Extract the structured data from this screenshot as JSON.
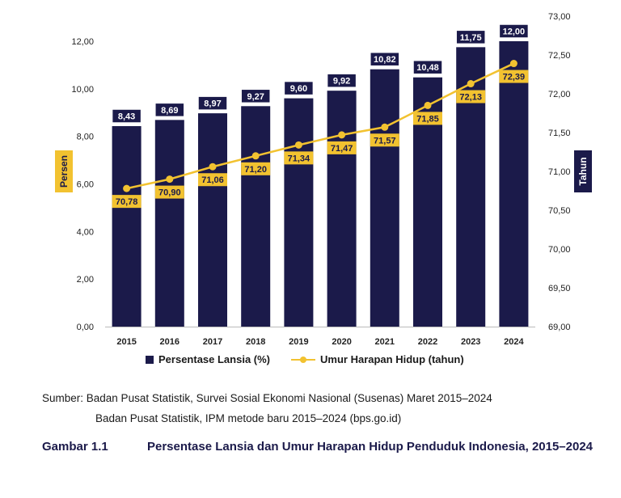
{
  "chart_data": {
    "type": "bar+line",
    "categories": [
      "2015",
      "2016",
      "2017",
      "2018",
      "2019",
      "2020",
      "2021",
      "2022",
      "2023",
      "2024"
    ],
    "series": [
      {
        "name": "Persentase Lansia (%)",
        "type": "bar",
        "axis": "left",
        "color": "#1b1a4a",
        "values": [
          8.43,
          8.69,
          8.97,
          9.27,
          9.6,
          9.92,
          10.82,
          10.48,
          11.75,
          12.0
        ],
        "labels": [
          "8,43",
          "8,69",
          "8,97",
          "9,27",
          "9,60",
          "9,92",
          "10,82",
          "10,48",
          "11,75",
          "12,00"
        ]
      },
      {
        "name": "Umur Harapan Hidup (tahun)",
        "type": "line",
        "axis": "right",
        "color": "#f2c230",
        "values": [
          70.78,
          70.9,
          71.06,
          71.2,
          71.34,
          71.47,
          71.57,
          71.85,
          72.13,
          72.39
        ],
        "labels": [
          "70,78",
          "70,90",
          "71,06",
          "71,20",
          "71,34",
          "71,47",
          "71,57",
          "71,85",
          "72,13",
          "72,39"
        ]
      }
    ],
    "ylabel_left": "Persen",
    "ylabel_right": "Tahun",
    "ylim_left": [
      0,
      12
    ],
    "ylim_right": [
      69,
      73
    ],
    "yticks_left": [
      "0,00",
      "2,00",
      "4,00",
      "6,00",
      "8,00",
      "10,00",
      "12,00"
    ],
    "yticks_right": [
      "69,00",
      "69,50",
      "70,00",
      "70,50",
      "71,00",
      "71,50",
      "72,00",
      "72,50",
      "73,00"
    ],
    "legend_position": "bottom",
    "grid": false
  },
  "source": {
    "line1": "Sumber: Badan Pusat Statistik, Survei Sosial Ekonomi Nasional (Susenas) Maret 2015–2024",
    "line2": "Badan Pusat Statistik, IPM metode baru 2015–2024 (bps.go.id)"
  },
  "caption": {
    "number": "Gambar 1.1",
    "title": "Persentase Lansia dan Umur Harapan Hidup Penduduk Indonesia, 2015–2024"
  },
  "colors": {
    "bar": "#1b1a4a",
    "line": "#f2c230",
    "caption": "#1b1a4a"
  }
}
